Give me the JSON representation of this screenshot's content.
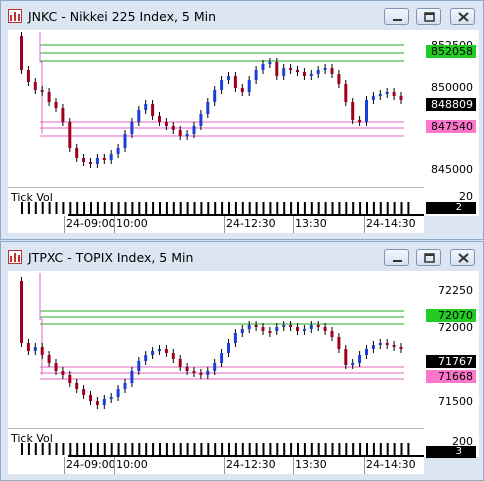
{
  "windows": [
    {
      "title": "JNKC - Nikkei 225 Index, 5 Min",
      "price_ticks": [
        "852500",
        "850000",
        "847500",
        "845000"
      ],
      "marker_top": "852058",
      "marker_last": "848809",
      "marker_low": "847540",
      "vol_label": "Tick Vol",
      "vol_scale": "20",
      "vol_value": "2",
      "time_labels": [
        "24-09:00",
        "10:00",
        "24-12:30",
        "13:30",
        "24-14:30"
      ]
    },
    {
      "title": "JTPXC - TOPIX Index, 5 Min",
      "price_ticks": [
        "72250",
        "72000",
        "71500"
      ],
      "marker_top": "72070",
      "marker_last": "71767",
      "marker_low": "71668",
      "vol_label": "Tick Vol",
      "vol_scale": "200",
      "vol_value": "3",
      "time_labels": [
        "24-09:00",
        "10:00",
        "24-12:30",
        "13:30",
        "24-14:30"
      ]
    }
  ],
  "colors": {
    "up": "#1a3fd8",
    "down": "#a0001e",
    "green_line": "#22aa22",
    "pink_line": "#e066c0",
    "window_bg": "#dbe6f2"
  },
  "icons": [
    "chart-app-icon",
    "minimize-icon",
    "maximize-icon",
    "close-icon"
  ]
}
